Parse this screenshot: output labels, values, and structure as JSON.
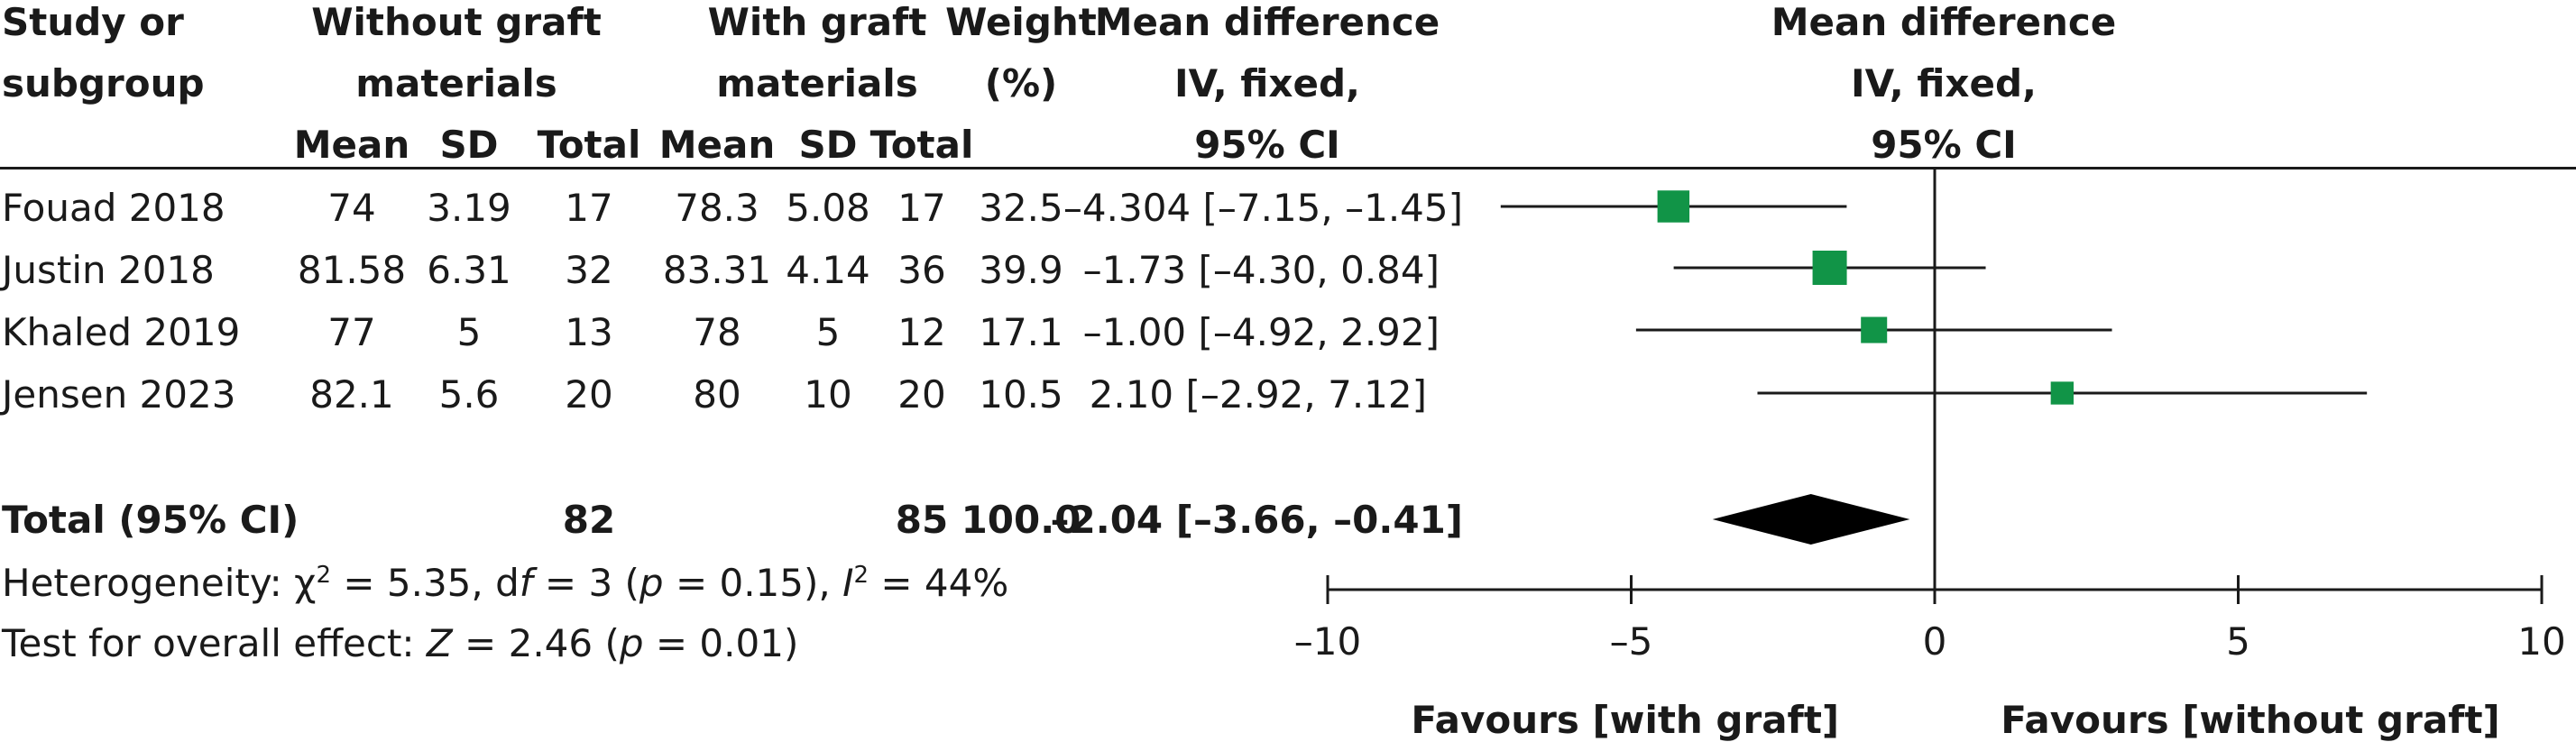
{
  "table": {
    "headers": {
      "study": [
        "Study or",
        "subgroup"
      ],
      "without_group": [
        "Without graft",
        "materials"
      ],
      "with_group": [
        "With graft",
        "materials"
      ],
      "weight": [
        "Weight",
        "(%)"
      ],
      "md_table": [
        "Mean difference",
        "IV, fixed,",
        "95% CI"
      ],
      "md_plot": [
        "Mean difference",
        "IV, fixed,",
        "95% CI"
      ],
      "sub": [
        "Mean",
        "SD",
        "Total",
        "Mean",
        "SD",
        "Total"
      ]
    },
    "rows": [
      {
        "study": "Fouad 2018",
        "mean1": "74",
        "sd1": "3.19",
        "n1": "17",
        "mean2": "78.3",
        "sd2": "5.08",
        "n2": "17",
        "weight": "32.5",
        "ci": "–4.304 [–7.15, –1.45]"
      },
      {
        "study": "Justin 2018",
        "mean1": "81.58",
        "sd1": "6.31",
        "n1": "32",
        "mean2": "83.31",
        "sd2": "4.14",
        "n2": "36",
        "weight": "39.9",
        "ci": "–1.73 [–4.30, 0.84]"
      },
      {
        "study": "Khaled 2019",
        "mean1": "77",
        "sd1": "5",
        "n1": "13",
        "mean2": "78",
        "sd2": "5",
        "n2": "12",
        "weight": "17.1",
        "ci": "–1.00 [–4.92, 2.92]"
      },
      {
        "study": "Jensen 2023",
        "mean1": "82.1",
        "sd1": "5.6",
        "n1": "20",
        "mean2": "80",
        "sd2": "10",
        "n2": "20",
        "weight": "10.5",
        "ci": "2.10 [–2.92, 7.12]"
      }
    ],
    "total": {
      "label": "Total (95% CI)",
      "n1": "82",
      "n2": "85",
      "weight": "100.0",
      "ci": "–2.04 [–3.66, –0.41]"
    },
    "heterogeneity": {
      "prefix": "Heterogeneity: ",
      "chi": "χ",
      "chi_sup": "2",
      "mid1": " = 5.35, d",
      "df_f": "f",
      "mid2": " = 3 (",
      "p": "p",
      "mid3": " = 0.15), ",
      "i": "I",
      "i_sup": "2",
      "end": " = 44%"
    },
    "overall": {
      "prefix": "Test for overall effect: ",
      "z": "Z",
      "mid": " = 2.46 (",
      "p": "p",
      "end": " = 0.01)"
    }
  },
  "chart_data": {
    "type": "scatter",
    "subtype": "forest-plot",
    "studies": [
      {
        "name": "Fouad 2018",
        "estimate": -4.304,
        "lower": -7.15,
        "upper": -1.45,
        "weight": 32.5
      },
      {
        "name": "Justin 2018",
        "estimate": -1.73,
        "lower": -4.3,
        "upper": 0.84,
        "weight": 39.9
      },
      {
        "name": "Khaled 2019",
        "estimate": -1.0,
        "lower": -4.92,
        "upper": 2.92,
        "weight": 17.1
      },
      {
        "name": "Jensen 2023",
        "estimate": 2.1,
        "lower": -2.92,
        "upper": 7.12,
        "weight": 10.5
      }
    ],
    "pooled": {
      "estimate": -2.04,
      "lower": -3.66,
      "upper": -0.41
    },
    "xlim": [
      -10,
      10
    ],
    "xticks": [
      -10,
      -5,
      0,
      5,
      10
    ],
    "xtick_labels": [
      "–10",
      "–5",
      "0",
      "5",
      "10"
    ],
    "favours_left": "Favours [with graft]",
    "favours_right": "Favours [without graft]",
    "marker_color": "#119447",
    "diamond_color": "#000000"
  }
}
